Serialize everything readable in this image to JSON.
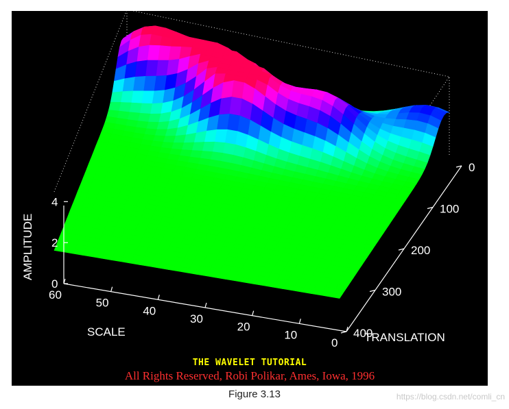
{
  "chart_data": {
    "type": "surface",
    "z_label": "AMPLITUDE",
    "x_label": "SCALE",
    "y_label": "TRANSLATION",
    "z_ticks": [
      "0",
      "2",
      "4"
    ],
    "x_ticks": [
      "0",
      "10",
      "20",
      "30",
      "40",
      "50",
      "60"
    ],
    "y_ticks": [
      "0",
      "100",
      "200",
      "300",
      "400"
    ],
    "zlim": [
      0,
      4
    ],
    "xlim": [
      0,
      60
    ],
    "ylim": [
      0,
      400
    ],
    "grid": true,
    "colormap": "hsv",
    "base_amplitude": 1,
    "peaks": [
      {
        "scale": 3,
        "translation": 20,
        "amplitude": 2.6
      },
      {
        "scale": 20,
        "translation": 70,
        "amplitude": 3.3
      },
      {
        "scale": 35,
        "translation": 85,
        "amplitude": 4.0
      },
      {
        "scale": 42,
        "translation": 40,
        "amplitude": 3.4
      },
      {
        "scale": 55,
        "translation": 30,
        "amplitude": 3.8
      }
    ],
    "background_color": "#000000"
  },
  "overlay": {
    "title": "THE WAVELET TUTORIAL",
    "copyright": "All Rights Reserved, Robi Polikar, Ames, Iowa, 1996",
    "title_color": "#ffff00",
    "copyright_color": "#ff3030"
  },
  "caption": "Figure 3.13",
  "watermark": "https://blog.csdn.net/comli_cn"
}
